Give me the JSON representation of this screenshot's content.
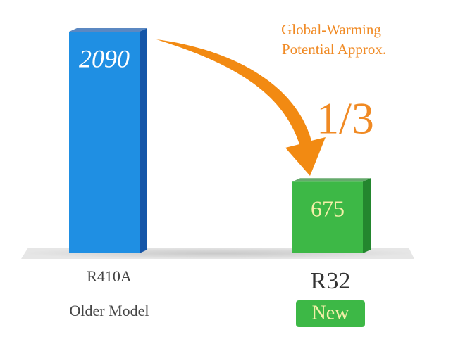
{
  "chart_data": {
    "type": "bar",
    "categories": [
      "R410A",
      "R32"
    ],
    "sublabels": [
      "Older Model",
      "New"
    ],
    "values": [
      2090,
      675
    ],
    "colors": [
      "#1f8fe3",
      "#3db846"
    ],
    "annotation_lines": [
      "Global-Warming",
      "Potential Approx."
    ],
    "ratio_label": "1/3"
  }
}
